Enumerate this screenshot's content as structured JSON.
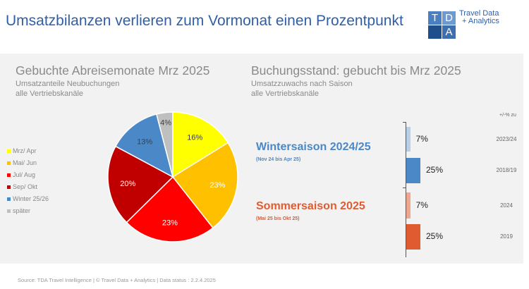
{
  "header": {
    "title": "Umsatzbilanzen verlieren zum Vormonat einen Prozentpunkt",
    "logo": {
      "letters": [
        "T",
        "D",
        "A"
      ],
      "text_line1": "Travel Data",
      "text_line2": "+ Analytics"
    }
  },
  "footer": {
    "text": "Source: TDA Travel Intelligence  |  © Travel Data + Analytics  | Data status : 2.2.4.2025"
  },
  "chart_data": [
    {
      "type": "pie",
      "title": "Gebuchte Abreisemonate Mrz 2025",
      "subtitle": [
        "Umsatzanteile Neubuchungen",
        "alle Vertriebskanäle"
      ],
      "legend_position": "left",
      "slices": [
        {
          "name": "Mrz/ Apr",
          "value": 16,
          "label": "16%",
          "color": "#ffff00"
        },
        {
          "name": "Mai/ Jun",
          "value": 23,
          "label": "23%",
          "color": "#ffc000"
        },
        {
          "name": "Jul/ Aug",
          "value": 23,
          "label": "23%",
          "color": "#ff0000"
        },
        {
          "name": "Sep/ Okt",
          "value": 20,
          "label": "20%",
          "color": "#c00000"
        },
        {
          "name": "Winter 25/26",
          "value": 13,
          "label": "13%",
          "color": "#4a88c7"
        },
        {
          "name": "später",
          "value": 4,
          "label": "4%",
          "color": "#bfbfbf"
        }
      ]
    },
    {
      "type": "bar",
      "orientation": "horizontal",
      "title": "Buchungsstand: gebucht bis Mrz 2025",
      "subtitle": [
        "Umsatzzuwachs nach Saison",
        "alle Vertriebskanäle"
      ],
      "compare_header": "+/-% zu",
      "groups": [
        {
          "name": "Wintersaison 2024/25",
          "period": "(Nov 24 bis Apr 25)",
          "color": "#4a88c7",
          "bars": [
            {
              "compare": "2023/24",
              "value": 7,
              "label": "7%",
              "color": "#b8cfe8"
            },
            {
              "compare": "2018/19",
              "value": 25,
              "label": "25%",
              "color": "#4a88c7"
            }
          ]
        },
        {
          "name": "Sommersaison 2025",
          "period": "(Mai 25 bis Okt 25)",
          "color": "#e15b30",
          "bars": [
            {
              "compare": "2024",
              "value": 7,
              "label": "7%",
              "color": "#f0a78f"
            },
            {
              "compare": "2019",
              "value": 25,
              "label": "25%",
              "color": "#e15b30"
            }
          ]
        }
      ]
    }
  ]
}
